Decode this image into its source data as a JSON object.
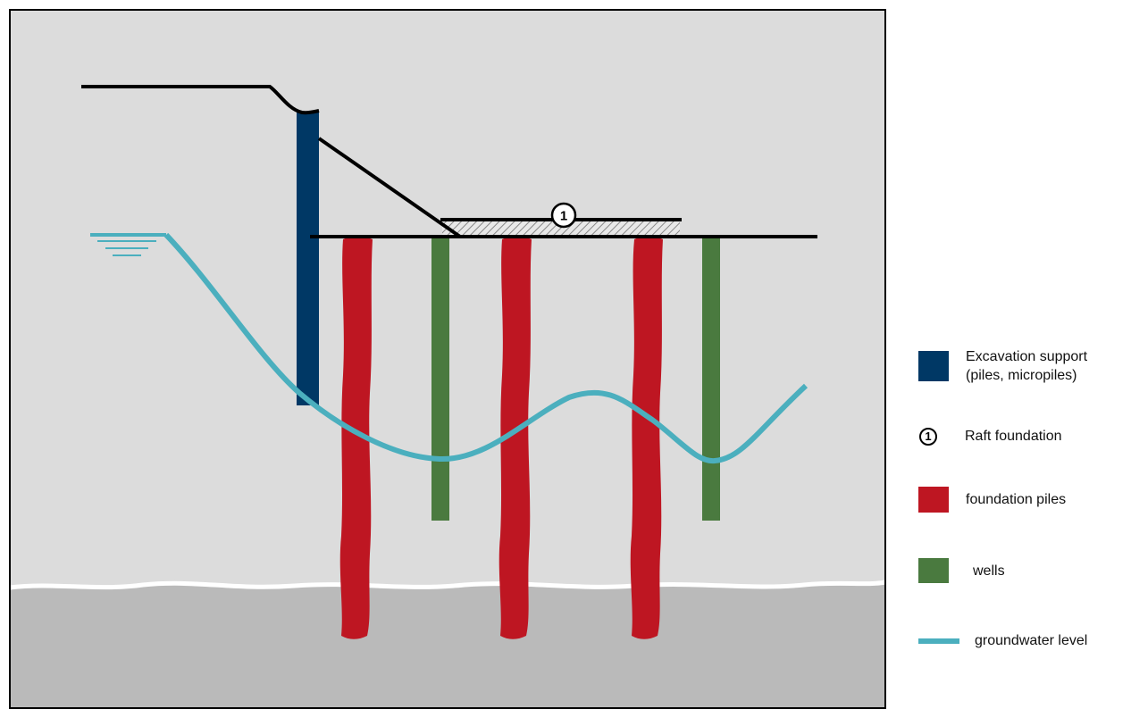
{
  "diagram": {
    "raft_marker": "1",
    "colors": {
      "background_soil": "#dcdcdc",
      "deep_soil": "#bababa",
      "excavation_support": "#003865",
      "foundation_piles": "#be1622",
      "wells": "#4a7a3f",
      "groundwater": "#4bafbe",
      "ground_line": "#000000"
    }
  },
  "legend": {
    "items": [
      {
        "id": "excavation",
        "label": "Excavation support\n(piles, micropiles)",
        "swatch": "square",
        "color": "#003865"
      },
      {
        "id": "raft",
        "label": "Raft foundation",
        "swatch": "number",
        "symbol": "1"
      },
      {
        "id": "piles",
        "label": "foundation piles",
        "swatch": "square",
        "color": "#be1622"
      },
      {
        "id": "wells",
        "label": "wells",
        "swatch": "square",
        "color": "#4a7a3f"
      },
      {
        "id": "groundwater",
        "label": "groundwater level",
        "swatch": "line",
        "color": "#4bafbe"
      }
    ]
  }
}
